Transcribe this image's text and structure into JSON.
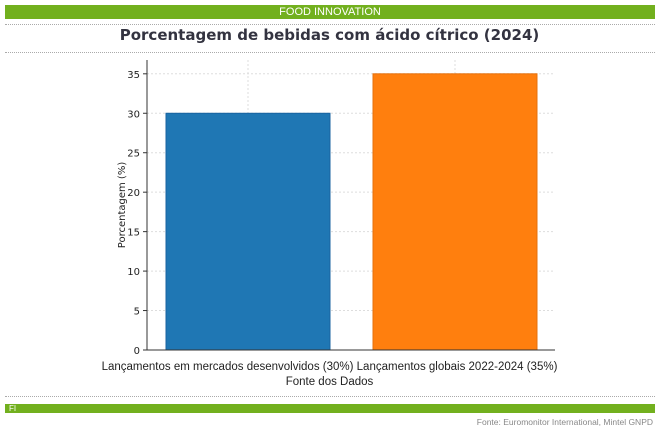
{
  "header": {
    "banner": "FOOD INNOVATION"
  },
  "footer": {
    "badge": "FI",
    "source": "Fonte: Euromonitor International, Mintel GNPD"
  },
  "chart_data": {
    "type": "bar",
    "title": "Porcentagem de bebidas com ácido cítrico (2024)",
    "categories": [
      "Lançamentos em mercados desenvolvidos (30%)",
      "Lançamentos globais 2022-2024 (35%)"
    ],
    "values": [
      30,
      35
    ],
    "colors": [
      "#1f77b4",
      "#ff7f0e"
    ],
    "xlabel": "Fonte dos Dados",
    "ylabel": "Porcentagem (%)",
    "ylim": [
      0,
      36.75
    ],
    "yticks": [
      0,
      5,
      10,
      15,
      20,
      25,
      30,
      35
    ],
    "grid": true
  }
}
